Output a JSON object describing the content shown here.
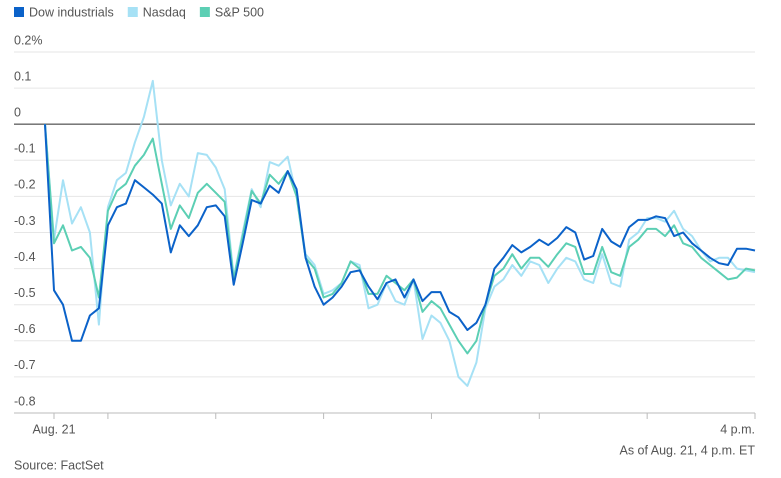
{
  "chart_data": {
    "type": "line",
    "legend": "top-left",
    "grid": true,
    "categories": [
      null,
      "Aug. 21",
      null,
      null,
      null,
      null,
      null,
      null,
      null,
      null,
      null,
      null,
      null,
      null,
      null,
      null,
      null,
      null,
      null,
      null,
      null,
      null,
      null,
      null,
      null,
      null,
      null,
      null,
      null,
      null,
      null,
      null,
      null,
      null,
      null,
      null,
      null,
      null,
      null,
      null,
      null,
      null,
      null,
      null,
      null,
      null,
      null,
      null,
      null,
      null,
      null,
      null,
      null,
      null,
      null,
      null,
      null,
      null,
      null,
      null,
      null,
      null,
      null,
      null,
      null,
      null,
      null,
      null,
      null,
      null,
      null,
      null,
      null,
      null,
      null,
      null,
      null,
      null,
      null,
      "4 p.m."
    ],
    "ylim": [
      -0.8,
      0.2
    ],
    "yticks": [
      {
        "value": 0.2,
        "label": "0.2%"
      },
      0.1,
      0,
      -0.1,
      -0.2,
      -0.3,
      -0.4,
      -0.5,
      -0.6,
      -0.7,
      -0.8
    ],
    "series": [
      {
        "name": "Dow industrials",
        "color": "#0b62c9",
        "values": [
          0,
          -0.46,
          -0.5,
          -0.6,
          -0.6,
          -0.53,
          -0.51,
          -0.28,
          -0.23,
          -0.22,
          -0.155,
          -0.175,
          -0.195,
          -0.22,
          -0.355,
          -0.28,
          -0.31,
          -0.28,
          -0.23,
          -0.225,
          -0.255,
          -0.445,
          -0.33,
          -0.21,
          -0.22,
          -0.17,
          -0.19,
          -0.13,
          -0.18,
          -0.37,
          -0.45,
          -0.5,
          -0.48,
          -0.45,
          -0.41,
          -0.405,
          -0.45,
          -0.485,
          -0.44,
          -0.43,
          -0.48,
          -0.43,
          -0.49,
          -0.465,
          -0.465,
          -0.52,
          -0.535,
          -0.57,
          -0.55,
          -0.5,
          -0.4,
          -0.37,
          -0.335,
          -0.355,
          -0.34,
          -0.32,
          -0.335,
          -0.315,
          -0.285,
          -0.3,
          -0.375,
          -0.365,
          -0.29,
          -0.325,
          -0.34,
          -0.285,
          -0.265,
          -0.265,
          -0.255,
          -0.26,
          -0.31,
          -0.3,
          -0.33,
          -0.35,
          -0.37,
          -0.385,
          -0.39,
          -0.345,
          -0.345,
          -0.35
        ]
      },
      {
        "name": "Nasdaq",
        "color": "#a6e1f5",
        "values": [
          0,
          -0.32,
          -0.155,
          -0.275,
          -0.23,
          -0.3,
          -0.555,
          -0.23,
          -0.155,
          -0.135,
          -0.05,
          0.02,
          0.12,
          -0.1,
          -0.225,
          -0.165,
          -0.2,
          -0.08,
          -0.085,
          -0.12,
          -0.18,
          -0.425,
          -0.3,
          -0.18,
          -0.23,
          -0.105,
          -0.115,
          -0.09,
          -0.2,
          -0.36,
          -0.39,
          -0.47,
          -0.46,
          -0.44,
          -0.38,
          -0.39,
          -0.51,
          -0.5,
          -0.44,
          -0.49,
          -0.5,
          -0.43,
          -0.595,
          -0.53,
          -0.55,
          -0.6,
          -0.7,
          -0.725,
          -0.66,
          -0.51,
          -0.45,
          -0.43,
          -0.39,
          -0.42,
          -0.38,
          -0.39,
          -0.44,
          -0.4,
          -0.37,
          -0.38,
          -0.43,
          -0.44,
          -0.36,
          -0.44,
          -0.45,
          -0.32,
          -0.3,
          -0.26,
          -0.26,
          -0.27,
          -0.24,
          -0.29,
          -0.31,
          -0.35,
          -0.38,
          -0.37,
          -0.37,
          -0.4,
          -0.405,
          -0.41
        ]
      },
      {
        "name": "S&P 500",
        "color": "#5ccfb4",
        "values": [
          0,
          -0.33,
          -0.28,
          -0.35,
          -0.34,
          -0.37,
          -0.48,
          -0.24,
          -0.185,
          -0.165,
          -0.115,
          -0.085,
          -0.04,
          -0.165,
          -0.29,
          -0.225,
          -0.26,
          -0.19,
          -0.165,
          -0.19,
          -0.215,
          -0.43,
          -0.31,
          -0.185,
          -0.22,
          -0.14,
          -0.165,
          -0.13,
          -0.2,
          -0.37,
          -0.4,
          -0.48,
          -0.47,
          -0.44,
          -0.38,
          -0.4,
          -0.47,
          -0.47,
          -0.42,
          -0.44,
          -0.46,
          -0.43,
          -0.52,
          -0.49,
          -0.51,
          -0.555,
          -0.6,
          -0.635,
          -0.6,
          -0.5,
          -0.42,
          -0.4,
          -0.36,
          -0.4,
          -0.37,
          -0.37,
          -0.395,
          -0.36,
          -0.33,
          -0.34,
          -0.415,
          -0.415,
          -0.34,
          -0.41,
          -0.42,
          -0.34,
          -0.32,
          -0.29,
          -0.29,
          -0.31,
          -0.28,
          -0.33,
          -0.34,
          -0.37,
          -0.39,
          -0.41,
          -0.43,
          -0.425,
          -0.4,
          -0.405
        ]
      }
    ],
    "annotation": "As of Aug. 21, 4 p.m. ET",
    "source": "Source: FactSet"
  }
}
